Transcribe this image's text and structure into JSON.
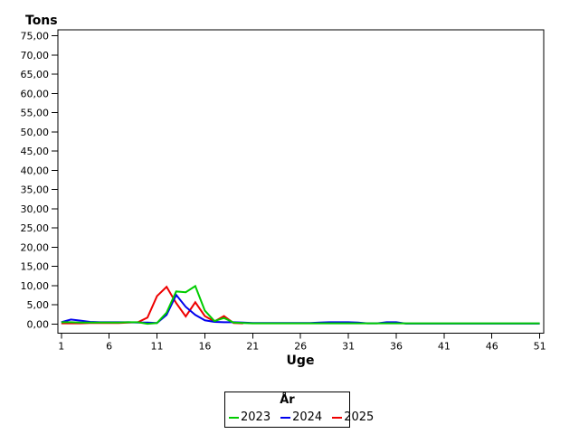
{
  "chart_data": {
    "type": "line",
    "title": "",
    "ylabel": "Tons",
    "xlabel": "Uge",
    "ylim": [
      0,
      75
    ],
    "xlim": [
      1,
      51
    ],
    "grid": false,
    "y_tick_labels": [
      "0,00",
      "5,00",
      "10,00",
      "15,00",
      "20,00",
      "25,00",
      "30,00",
      "35,00",
      "40,00",
      "45,00",
      "50,00",
      "55,00",
      "60,00",
      "65,00",
      "70,00",
      "75,00"
    ],
    "y_tick_values": [
      0,
      5,
      10,
      15,
      20,
      25,
      30,
      35,
      40,
      45,
      50,
      55,
      60,
      65,
      70,
      75
    ],
    "x_ticks": [
      1,
      6,
      11,
      16,
      21,
      26,
      31,
      36,
      41,
      46,
      51
    ],
    "legend": {
      "title": "År",
      "position": "bottom-center"
    },
    "x_start_week": 1,
    "series": [
      {
        "name": "2023",
        "color": "#00cc00",
        "values": [
          0.5,
          0.5,
          0.4,
          0.4,
          0.4,
          0.4,
          0.4,
          0.5,
          0.5,
          0.1,
          0.3,
          3.0,
          8.5,
          8.3,
          9.9,
          3.5,
          0.8,
          1.6,
          0.4,
          0.3,
          0.2,
          0.2,
          0.2,
          0.2,
          0.2,
          0.2,
          0.2,
          0.2,
          0.2,
          0.2,
          0.2,
          0.2,
          0.2,
          0.2,
          0.2,
          0.2,
          0.2,
          0.2,
          0.2,
          0.2,
          0.2,
          0.2,
          0.2,
          0.2,
          0.2,
          0.2,
          0.2,
          0.2,
          0.2,
          0.2,
          0.2
        ]
      },
      {
        "name": "2024",
        "color": "#0000ee",
        "values": [
          0.5,
          1.2,
          0.9,
          0.6,
          0.5,
          0.5,
          0.5,
          0.5,
          0.4,
          0.4,
          0.3,
          2.4,
          7.6,
          4.5,
          2.4,
          1.0,
          0.6,
          0.5,
          0.5,
          0.4,
          0.3,
          0.3,
          0.3,
          0.3,
          0.3,
          0.3,
          0.3,
          0.4,
          0.5,
          0.5,
          0.5,
          0.4,
          0.2,
          0.2,
          0.5,
          0.5,
          0.15,
          0.15,
          0.15,
          0.15,
          0.15,
          0.15,
          0.15,
          0.15,
          0.15,
          0.15,
          0.15,
          0.15,
          0.15,
          0.15,
          0.15
        ]
      },
      {
        "name": "2025",
        "color": "#ee0000",
        "values": [
          0.2,
          0.2,
          0.2,
          0.3,
          0.3,
          0.3,
          0.3,
          0.4,
          0.5,
          1.7,
          7.3,
          9.7,
          5.5,
          2.0,
          5.7,
          2.1,
          0.7,
          2.1,
          0.3,
          0.2
        ]
      }
    ]
  }
}
